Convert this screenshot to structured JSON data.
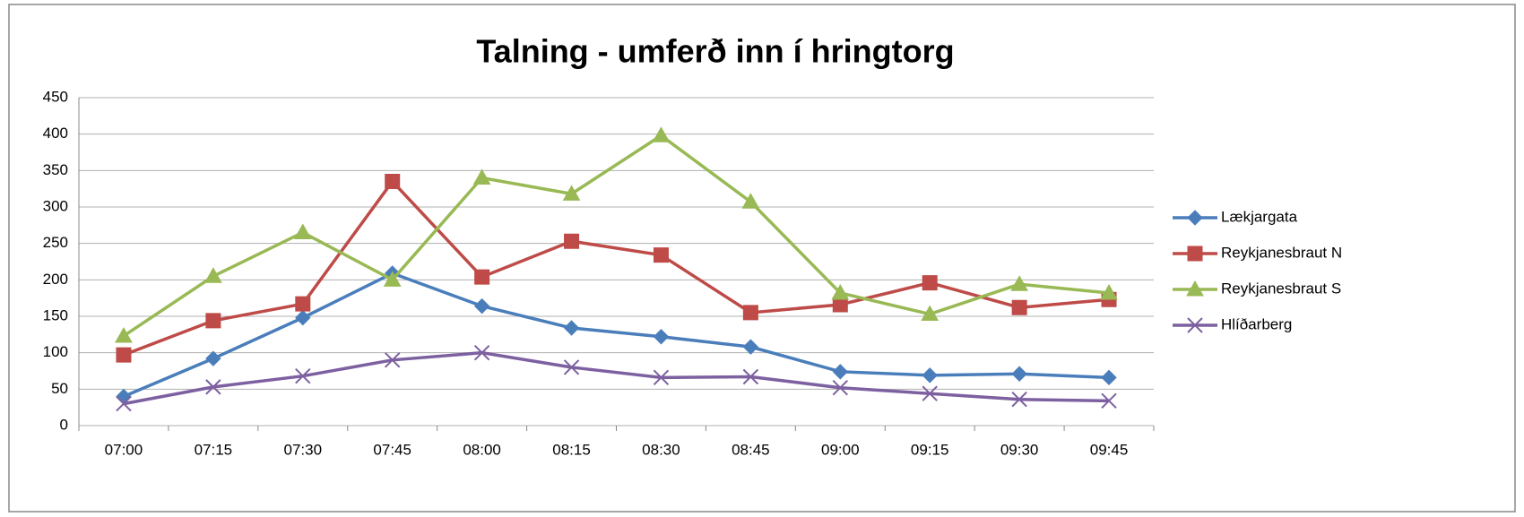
{
  "chart_data": {
    "type": "line",
    "title": "Talning - umferð inn í hringtorg",
    "categories": [
      "07:00",
      "07:15",
      "07:30",
      "07:45",
      "08:00",
      "08:15",
      "08:30",
      "08:45",
      "09:00",
      "09:15",
      "09:30",
      "09:45"
    ],
    "series": [
      {
        "name": "Lækjargata",
        "color": "#4a7ebb",
        "marker": "diamond",
        "values": [
          40,
          92,
          148,
          209,
          164,
          134,
          122,
          108,
          74,
          69,
          71,
          66
        ]
      },
      {
        "name": "Reykjanesbraut N",
        "color": "#be4b48",
        "marker": "square",
        "values": [
          97,
          144,
          167,
          335,
          204,
          253,
          234,
          155,
          166,
          196,
          162,
          173
        ]
      },
      {
        "name": "Reykjanesbraut S",
        "color": "#98b954",
        "marker": "triangle",
        "values": [
          123,
          205,
          265,
          200,
          340,
          318,
          398,
          307,
          182,
          153,
          194,
          182
        ]
      },
      {
        "name": "Hlíðarberg",
        "color": "#7d60a0",
        "marker": "x",
        "values": [
          30,
          53,
          68,
          90,
          100,
          80,
          66,
          67,
          52,
          44,
          36,
          34
        ]
      }
    ],
    "ylim": [
      0,
      450
    ],
    "yticks": [
      0,
      50,
      100,
      150,
      200,
      250,
      300,
      350,
      400,
      450
    ],
    "grid": true,
    "legend": "right"
  }
}
